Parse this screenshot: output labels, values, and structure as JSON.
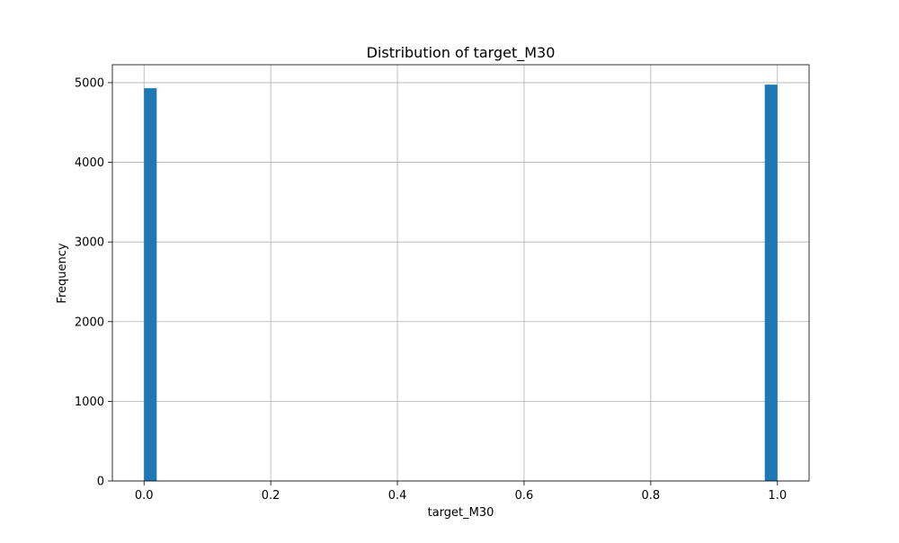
{
  "chart_data": {
    "type": "bar",
    "title": "Distribution of target_M30",
    "xlabel": "target_M30",
    "ylabel": "Frequency",
    "xlim": [
      -0.05,
      1.05
    ],
    "ylim": [
      0,
      5225
    ],
    "grid": true,
    "x_ticks": [
      0.0,
      0.2,
      0.4,
      0.6,
      0.8,
      1.0
    ],
    "x_tick_labels": [
      "0.0",
      "0.2",
      "0.4",
      "0.6",
      "0.8",
      "1.0"
    ],
    "y_ticks": [
      0,
      1000,
      2000,
      3000,
      4000,
      5000
    ],
    "y_tick_labels": [
      "0",
      "1000",
      "2000",
      "3000",
      "4000",
      "5000"
    ],
    "bin_width": 0.02,
    "bars": [
      {
        "x_start": 0.0,
        "x_end": 0.02,
        "value": 4930
      },
      {
        "x_start": 0.98,
        "x_end": 1.0,
        "value": 4975
      }
    ],
    "bar_color": "#1f77b4",
    "grid_color": "#b0b0b0"
  }
}
